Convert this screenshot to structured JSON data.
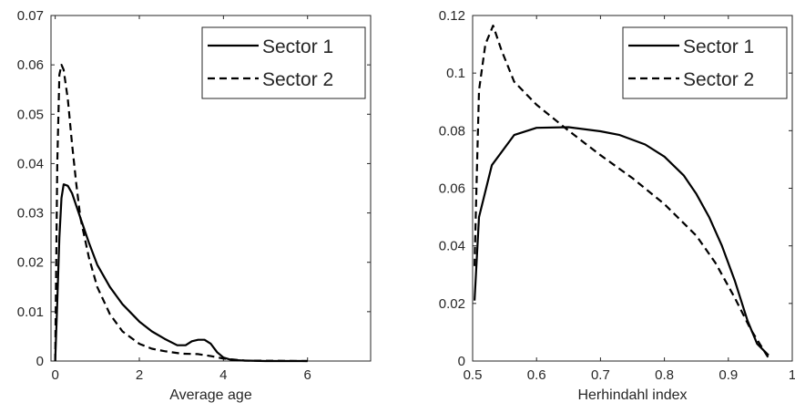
{
  "chart_data": [
    {
      "type": "line",
      "xlabel": "Average age",
      "ylabel": "",
      "xlim": [
        -0.1,
        7.5
      ],
      "ylim": [
        0,
        0.07
      ],
      "xticks": [
        0,
        2,
        4,
        6
      ],
      "yticks": [
        0,
        0.01,
        0.02,
        0.03,
        0.04,
        0.05,
        0.06,
        0.07
      ],
      "xtick_labels": [
        "0",
        "2",
        "4",
        "6"
      ],
      "ytick_labels": [
        "0",
        "0.01",
        "0.02",
        "0.03",
        "0.04",
        "0.05",
        "0.06",
        "0.07"
      ],
      "legend_position": "top-right",
      "series": [
        {
          "name": "Sector 1",
          "style": "solid",
          "x": [
            0,
            0.05,
            0.1,
            0.15,
            0.2,
            0.3,
            0.4,
            0.5,
            0.6,
            0.8,
            1.0,
            1.3,
            1.6,
            2.0,
            2.3,
            2.6,
            2.9,
            3.1,
            3.25,
            3.4,
            3.55,
            3.7,
            3.85,
            4.0,
            4.2,
            4.5,
            5.0,
            6.0
          ],
          "y": [
            0,
            0.012,
            0.025,
            0.033,
            0.0358,
            0.0355,
            0.034,
            0.0315,
            0.029,
            0.024,
            0.0195,
            0.015,
            0.0115,
            0.008,
            0.006,
            0.0045,
            0.0032,
            0.0032,
            0.004,
            0.0043,
            0.0043,
            0.0035,
            0.0018,
            0.0007,
            0.0002,
            0.0001,
            0,
            0
          ]
        },
        {
          "name": "Sector 2",
          "style": "dashed",
          "x": [
            0,
            0.05,
            0.1,
            0.15,
            0.2,
            0.3,
            0.4,
            0.5,
            0.6,
            0.8,
            1.0,
            1.3,
            1.6,
            2.0,
            2.3,
            2.6,
            3.0,
            3.4,
            3.7,
            4.0,
            4.5,
            6.0
          ],
          "y": [
            0,
            0.04,
            0.058,
            0.06,
            0.059,
            0.053,
            0.044,
            0.036,
            0.029,
            0.021,
            0.015,
            0.0095,
            0.006,
            0.0035,
            0.0025,
            0.002,
            0.0015,
            0.0014,
            0.001,
            0.0005,
            0.0001,
            0
          ]
        }
      ]
    },
    {
      "type": "line",
      "xlabel": "Herhindahl index",
      "ylabel": "",
      "xlim": [
        0.5,
        1
      ],
      "ylim": [
        0,
        0.12
      ],
      "xticks": [
        0.5,
        0.6,
        0.7,
        0.8,
        0.9,
        1.0
      ],
      "yticks": [
        0,
        0.02,
        0.04,
        0.06,
        0.08,
        0.1,
        0.12
      ],
      "xtick_labels": [
        "0.5",
        "0.6",
        "0.7",
        "0.8",
        "0.9",
        "1"
      ],
      "ytick_labels": [
        "0",
        "0.02",
        "0.04",
        "0.06",
        "0.08",
        "0.1",
        "0.12"
      ],
      "legend_position": "top-right",
      "series": [
        {
          "name": "Sector 1",
          "style": "solid",
          "x": [
            0.503,
            0.51,
            0.53,
            0.565,
            0.6,
            0.65,
            0.7,
            0.73,
            0.77,
            0.8,
            0.83,
            0.85,
            0.87,
            0.89,
            0.91,
            0.93,
            0.945,
            0.963
          ],
          "y": [
            0.021,
            0.05,
            0.068,
            0.0785,
            0.081,
            0.0812,
            0.0798,
            0.0785,
            0.0752,
            0.071,
            0.0645,
            0.058,
            0.05,
            0.04,
            0.028,
            0.014,
            0.006,
            0.002
          ]
        },
        {
          "name": "Sector 2",
          "style": "dashed",
          "x": [
            0.503,
            0.506,
            0.51,
            0.52,
            0.532,
            0.545,
            0.565,
            0.6,
            0.65,
            0.7,
            0.75,
            0.8,
            0.85,
            0.88,
            0.91,
            0.935,
            0.963
          ],
          "y": [
            0.033,
            0.06,
            0.094,
            0.11,
            0.1165,
            0.108,
            0.097,
            0.089,
            0.08,
            0.0715,
            0.0635,
            0.0545,
            0.0435,
            0.034,
            0.022,
            0.011,
            0.001
          ]
        }
      ]
    }
  ]
}
